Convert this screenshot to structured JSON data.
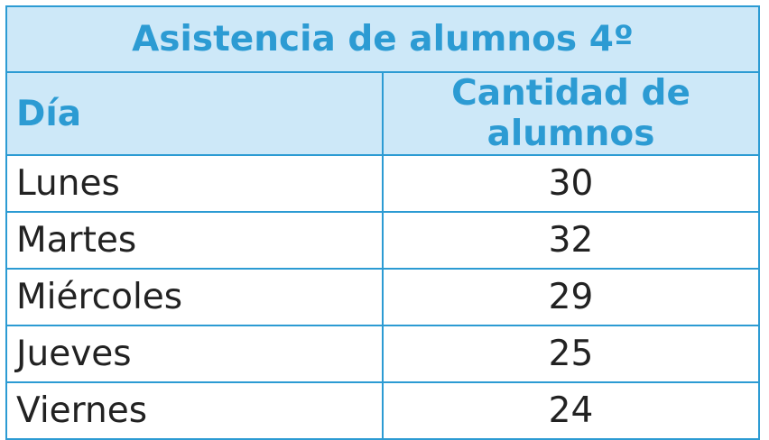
{
  "chart_data": {
    "type": "table",
    "title": "Asistencia de alumnos 4º",
    "columns": [
      "Día",
      "Cantidad de alumnos"
    ],
    "rows": [
      {
        "day": "Lunes",
        "count": "30"
      },
      {
        "day": "Martes",
        "count": "32"
      },
      {
        "day": "Miércoles",
        "count": "29"
      },
      {
        "day": "Jueves",
        "count": "25"
      },
      {
        "day": "Viernes",
        "count": "24"
      }
    ]
  },
  "colors": {
    "accent": "#2c9bd3",
    "header_bg": "#cde8f8",
    "text": "#222222"
  }
}
